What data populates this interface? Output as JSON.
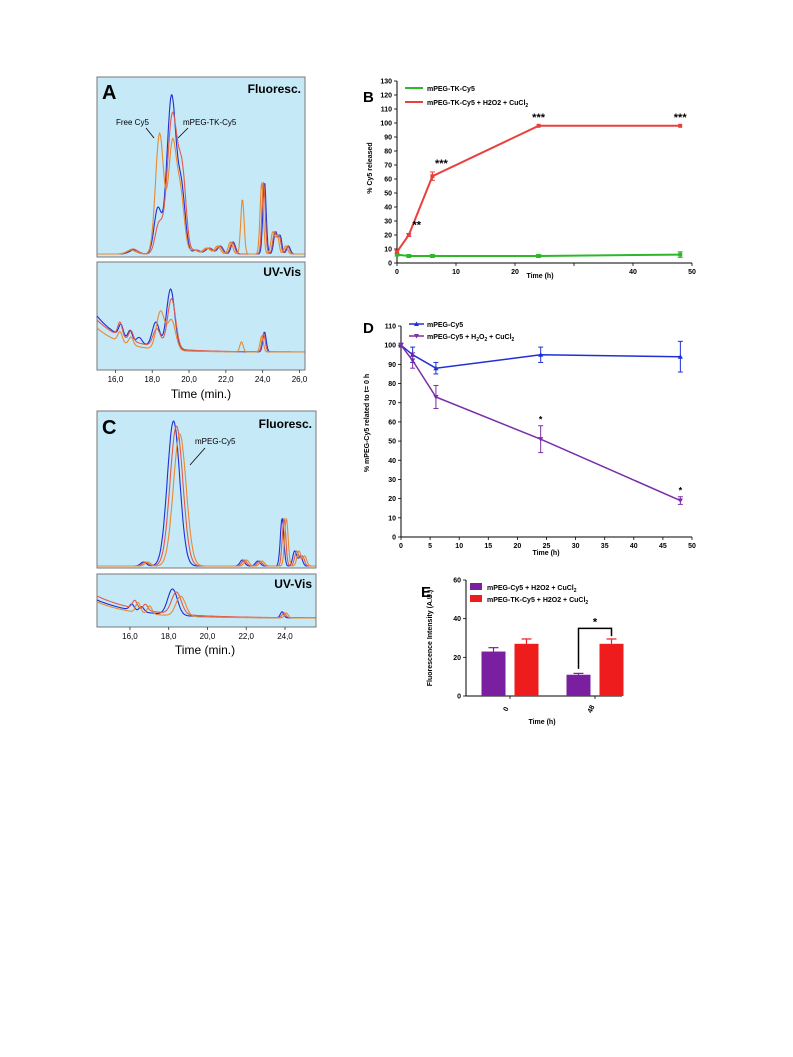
{
  "chart_data": [
    {
      "panel": "A",
      "type": "line",
      "sub_panels": [
        {
          "title": "Fluoresc.",
          "annotations": [
            "Free Cy5",
            "mPEG-TK-Cy5"
          ]
        },
        {
          "title": "UV-Vis"
        }
      ],
      "xlabel": "Time (min.)",
      "xticks": [
        "16,0",
        "18,0",
        "20,0",
        "22,0",
        "24,0",
        "26,0"
      ],
      "xlim": [
        15.0,
        26.3
      ],
      "series_colors": [
        "#1f2fd6",
        "#e25a4a",
        "#e8892e"
      ]
    },
    {
      "panel": "B",
      "type": "line",
      "xlabel": "Time (h)",
      "ylabel": "% Cy5 released",
      "xlim": [
        0,
        50
      ],
      "ylim": [
        0,
        130
      ],
      "xticks": [
        "0",
        "10",
        "20",
        "30",
        "40",
        "50"
      ],
      "yticks": [
        "0",
        "10",
        "20",
        "30",
        "40",
        "50",
        "60",
        "70",
        "80",
        "90",
        "100",
        "110",
        "120",
        "130"
      ],
      "legend_position": "top-left",
      "series": [
        {
          "name": "mPEG-TK-Cy5",
          "color": "#2bb82b",
          "x": [
            0,
            2,
            6,
            24,
            48
          ],
          "y": [
            6,
            5,
            5,
            5,
            6
          ],
          "err": [
            1,
            1,
            1,
            1,
            2
          ]
        },
        {
          "name": "mPEG-TK-Cy5 + H2O2 + CuCl",
          "name_sub": "2",
          "color": "#e8413d",
          "x": [
            0,
            2,
            6,
            24,
            48
          ],
          "y": [
            8,
            20,
            62,
            98,
            98
          ],
          "err": [
            1,
            1,
            3,
            0,
            0
          ]
        }
      ],
      "significance": [
        {
          "x": 2,
          "label": "**"
        },
        {
          "x": 6,
          "label": "***"
        },
        {
          "x": 24,
          "label": "***"
        },
        {
          "x": 48,
          "label": "***"
        }
      ]
    },
    {
      "panel": "C",
      "type": "line",
      "sub_panels": [
        {
          "title": "Fluoresc.",
          "annotations": [
            "mPEG-Cy5"
          ]
        },
        {
          "title": "UV-Vis"
        }
      ],
      "xlabel": "Time (min.)",
      "xticks": [
        "16,0",
        "18,0",
        "20,0",
        "22,0",
        "24,0"
      ],
      "xlim": [
        14.3,
        25.6
      ],
      "series_colors": [
        "#1f2fd6",
        "#e25a4a",
        "#e8892e"
      ]
    },
    {
      "panel": "D",
      "type": "line",
      "xlabel": "Time (h)",
      "ylabel": "% mPEG-Cy5 related to t= 0 h",
      "xlim": [
        0,
        50
      ],
      "ylim": [
        0,
        110
      ],
      "xticks": [
        "0",
        "5",
        "10",
        "15",
        "20",
        "25",
        "30",
        "35",
        "40",
        "45",
        "50"
      ],
      "yticks": [
        "0",
        "10",
        "20",
        "30",
        "40",
        "50",
        "60",
        "70",
        "80",
        "90",
        "100",
        "110"
      ],
      "legend_position": "top-left",
      "series": [
        {
          "name": "mPEG-Cy5",
          "color": "#1f2fd6",
          "x": [
            0,
            2,
            6,
            24,
            48
          ],
          "y": [
            100,
            95,
            88,
            95,
            94
          ],
          "err": [
            1,
            4,
            3,
            4,
            8
          ]
        },
        {
          "name": "mPEG-Cy5 + H",
          "name_parts": [
            "2",
            "O",
            "2",
            " + CuCl",
            "2"
          ],
          "color": "#7a2ea8",
          "x": [
            0,
            2,
            6,
            24,
            48
          ],
          "y": [
            100,
            92,
            73,
            51,
            19
          ],
          "err": [
            1,
            4,
            6,
            7,
            2
          ]
        }
      ],
      "significance": [
        {
          "x": 24,
          "label": "*"
        },
        {
          "x": 48,
          "label": "*"
        }
      ]
    },
    {
      "panel": "E",
      "type": "bar",
      "xlabel": "Time (h)",
      "ylabel": "Fluorescence Intensity (A.U.)",
      "categories": [
        "0",
        "48"
      ],
      "ylim": [
        0,
        60
      ],
      "yticks": [
        "0",
        "20",
        "40",
        "60"
      ],
      "legend_position": "top",
      "series": [
        {
          "name": "mPEG-Cy5 + H2O2 + CuCl",
          "name_sub": "2",
          "color": "#7a1fa0",
          "values": [
            23,
            11
          ],
          "err": [
            2,
            0.7
          ]
        },
        {
          "name": "mPEG-TK-Cy5 + H2O2 + CuCl",
          "name_sub": "2",
          "color": "#ee1c1c",
          "values": [
            27,
            27
          ],
          "err": [
            2.5,
            2.5
          ]
        }
      ],
      "significance": [
        {
          "category": "48",
          "label": "*"
        }
      ]
    }
  ]
}
